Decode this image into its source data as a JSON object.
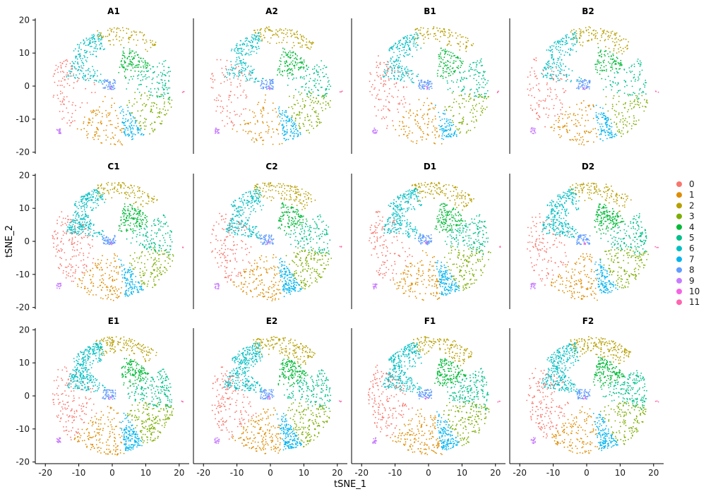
{
  "chart_data": {
    "type": "scatter",
    "facet_titles": [
      "A1",
      "A2",
      "B1",
      "B2",
      "C1",
      "C2",
      "D1",
      "D2",
      "E1",
      "E2",
      "F1",
      "F2"
    ],
    "xlabel": "tSNE_1",
    "ylabel": "tSNE_2",
    "xlim": [
      -23,
      23
    ],
    "ylim": [
      -20.5,
      20.5
    ],
    "xticks": [
      "-20",
      "-10",
      "0",
      "10",
      "20"
    ],
    "yticks": [
      "20",
      "10",
      "0",
      "-10",
      "-20"
    ],
    "legend_position": "right",
    "grid": false,
    "clusters": [
      {
        "name": "0",
        "color": "#F8766D",
        "center": [
          -15,
          2
        ]
      },
      {
        "name": "1",
        "color": "#DE8C00",
        "center": [
          -3,
          -10
        ]
      },
      {
        "name": "2",
        "color": "#B79F00",
        "center": [
          6,
          11
        ]
      },
      {
        "name": "3",
        "color": "#7CAE00",
        "center": [
          13,
          -6
        ]
      },
      {
        "name": "4",
        "color": "#00BA38",
        "center": [
          2,
          6
        ]
      },
      {
        "name": "5",
        "color": "#00C08B",
        "center": [
          11,
          2
        ]
      },
      {
        "name": "6",
        "color": "#00BFC4",
        "center": [
          -10,
          4
        ]
      },
      {
        "name": "7",
        "color": "#00B4F0",
        "center": [
          5,
          -12
        ]
      },
      {
        "name": "8",
        "color": "#619CFF",
        "center": [
          -2,
          0
        ]
      },
      {
        "name": "9",
        "color": "#C77CFF",
        "center": [
          -16,
          -13.5
        ]
      },
      {
        "name": "10",
        "color": "#F564E3",
        "center": [
          0,
          -1
        ]
      },
      {
        "name": "11",
        "color": "#FF64B0",
        "center": [
          21,
          -2
        ]
      }
    ]
  }
}
